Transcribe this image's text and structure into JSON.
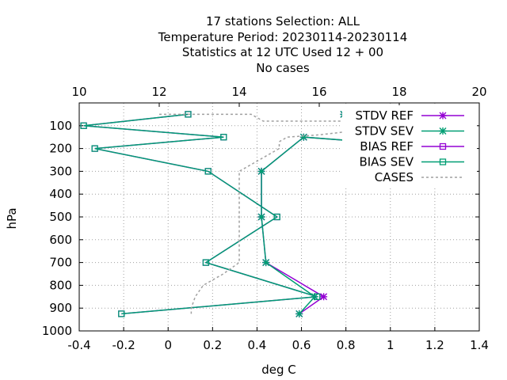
{
  "chart_data": {
    "type": "line",
    "title_lines": [
      "17 stations Selection: ALL",
      "Temperature  Period: 20230114-20230114",
      "Statistics at 12 UTC  Used  12 + 00",
      "No cases"
    ],
    "xlabel": "deg C",
    "ylabel": "hPa",
    "xlim": [
      -0.4,
      1.4
    ],
    "x2lim": [
      10,
      20
    ],
    "ylim": [
      1000,
      0
    ],
    "xticks": [
      "-0.4",
      "-0.2",
      "0",
      "0.2",
      "0.4",
      "0.6",
      "0.8",
      "1",
      "1.2",
      "1.4"
    ],
    "x2ticks": [
      "10",
      "12",
      "14",
      "16",
      "18",
      "20"
    ],
    "yticks": [
      "100",
      "200",
      "300",
      "400",
      "500",
      "600",
      "700",
      "800",
      "900",
      "1000"
    ],
    "grid": true,
    "legend_position": "top-right",
    "colors": {
      "STDV REF": "#9400d3",
      "STDV SEV": "#009e73",
      "BIAS REF": "#9400d3",
      "BIAS SEV": "#009e73",
      "CASES": "#a0a0a0"
    },
    "series": [
      {
        "name": "STDV REF",
        "marker": "star",
        "color": "#9400d3",
        "points": [
          [
            0.79,
            50
          ],
          [
            0.88,
            100
          ],
          [
            1.29,
            200
          ],
          [
            0.61,
            150
          ],
          [
            0.42,
            300
          ],
          [
            0.42,
            500
          ],
          [
            0.44,
            700
          ],
          [
            0.7,
            850
          ],
          [
            0.59,
            925
          ]
        ]
      },
      {
        "name": "STDV SEV",
        "marker": "star",
        "color": "#009e73",
        "points": [
          [
            0.79,
            50
          ],
          [
            0.88,
            100
          ],
          [
            1.29,
            200
          ],
          [
            0.61,
            150
          ],
          [
            0.42,
            300
          ],
          [
            0.42,
            500
          ],
          [
            0.44,
            700
          ],
          [
            0.66,
            850
          ],
          [
            0.59,
            925
          ]
        ]
      },
      {
        "name": "BIAS REF",
        "marker": "square",
        "color": "#9400d3",
        "points": [
          [
            0.09,
            50
          ],
          [
            -0.38,
            100
          ],
          [
            0.25,
            150
          ],
          [
            -0.33,
            200
          ],
          [
            0.18,
            300
          ],
          [
            0.49,
            500
          ],
          [
            0.17,
            700
          ],
          [
            0.67,
            850
          ],
          [
            -0.21,
            925
          ]
        ]
      },
      {
        "name": "BIAS SEV",
        "marker": "square",
        "color": "#009e73",
        "points": [
          [
            0.09,
            50
          ],
          [
            -0.38,
            100
          ],
          [
            0.25,
            150
          ],
          [
            -0.33,
            200
          ],
          [
            0.18,
            300
          ],
          [
            0.49,
            500
          ],
          [
            0.17,
            700
          ],
          [
            0.67,
            850
          ],
          [
            -0.21,
            925
          ]
        ]
      },
      {
        "name": "CASES",
        "marker": "none",
        "dashed": true,
        "color": "#a0a0a0",
        "axis": "x2",
        "points": [
          [
            12.0,
            50
          ],
          [
            14.3,
            50
          ],
          [
            14.6,
            80
          ],
          [
            17.0,
            80
          ],
          [
            17.2,
            100
          ],
          [
            17.0,
            120
          ],
          [
            16.0,
            140
          ],
          [
            15.2,
            150
          ],
          [
            15.0,
            170
          ],
          [
            15.0,
            200
          ],
          [
            14.4,
            260
          ],
          [
            14.0,
            300
          ],
          [
            14.0,
            320
          ],
          [
            14.0,
            500
          ],
          [
            14.0,
            600
          ],
          [
            14.0,
            700
          ],
          [
            13.6,
            750
          ],
          [
            13.1,
            800
          ],
          [
            12.9,
            850
          ],
          [
            12.8,
            900
          ],
          [
            12.8,
            925
          ]
        ]
      }
    ]
  }
}
